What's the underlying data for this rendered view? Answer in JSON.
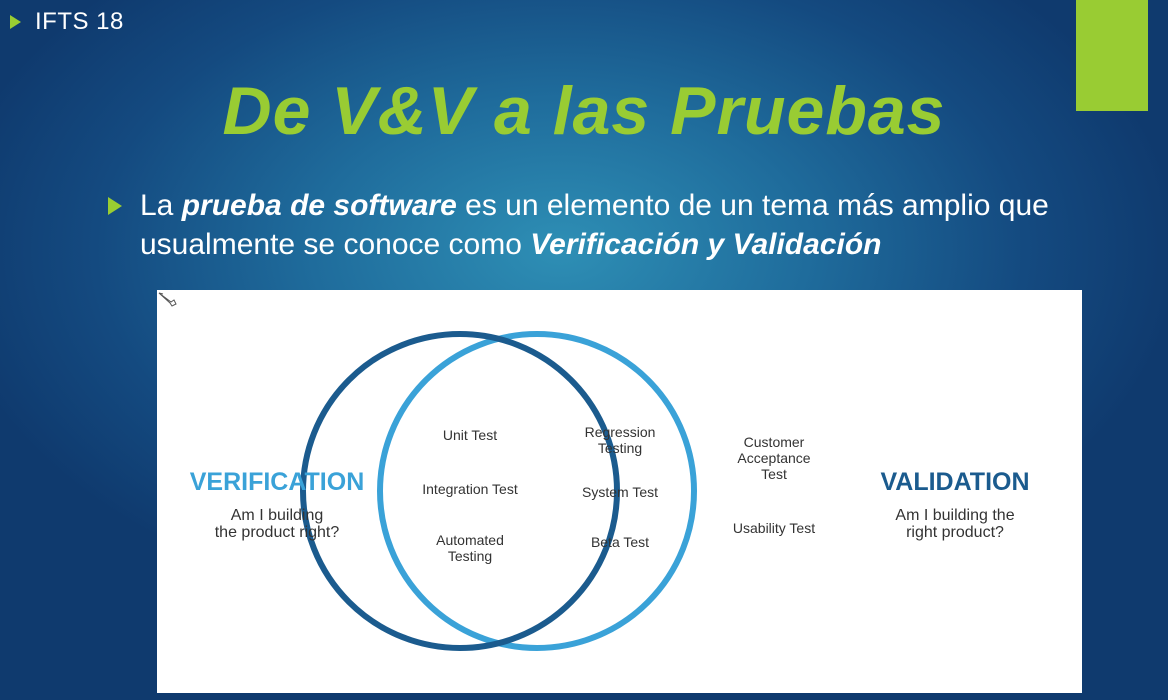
{
  "header": {
    "label": "IFTS 18"
  },
  "colors": {
    "accent_green": "#99cc33",
    "verification_blue": "#1b5b8e",
    "validation_blue": "#3aa2d8"
  },
  "slide": {
    "title": "De V&V a las Pruebas",
    "bullet": {
      "part1": "La ",
      "bold1": "prueba de software",
      "part2": " es un elemento de un tema más amplio que usualmente se conoce como ",
      "bold2": "Verificación y Validación"
    }
  },
  "diagram": {
    "verification": {
      "title": "VERIFICATION",
      "line1": "Am I building",
      "line2": "the product right?"
    },
    "validation": {
      "title": "VALIDATION",
      "line1": "Am I building the",
      "line2": "right product?"
    },
    "left_items": {
      "unit": "Unit Test",
      "integration": "Integration Test",
      "automated_1": "Automated",
      "automated_2": "Testing"
    },
    "middle_items": {
      "regression_1": "Regression",
      "regression_2": "Testing",
      "system": "System Test",
      "beta": "Beta Test"
    },
    "right_items": {
      "customer_1": "Customer",
      "customer_2": "Acceptance",
      "customer_3": "Test",
      "usability": "Usability Test"
    }
  }
}
